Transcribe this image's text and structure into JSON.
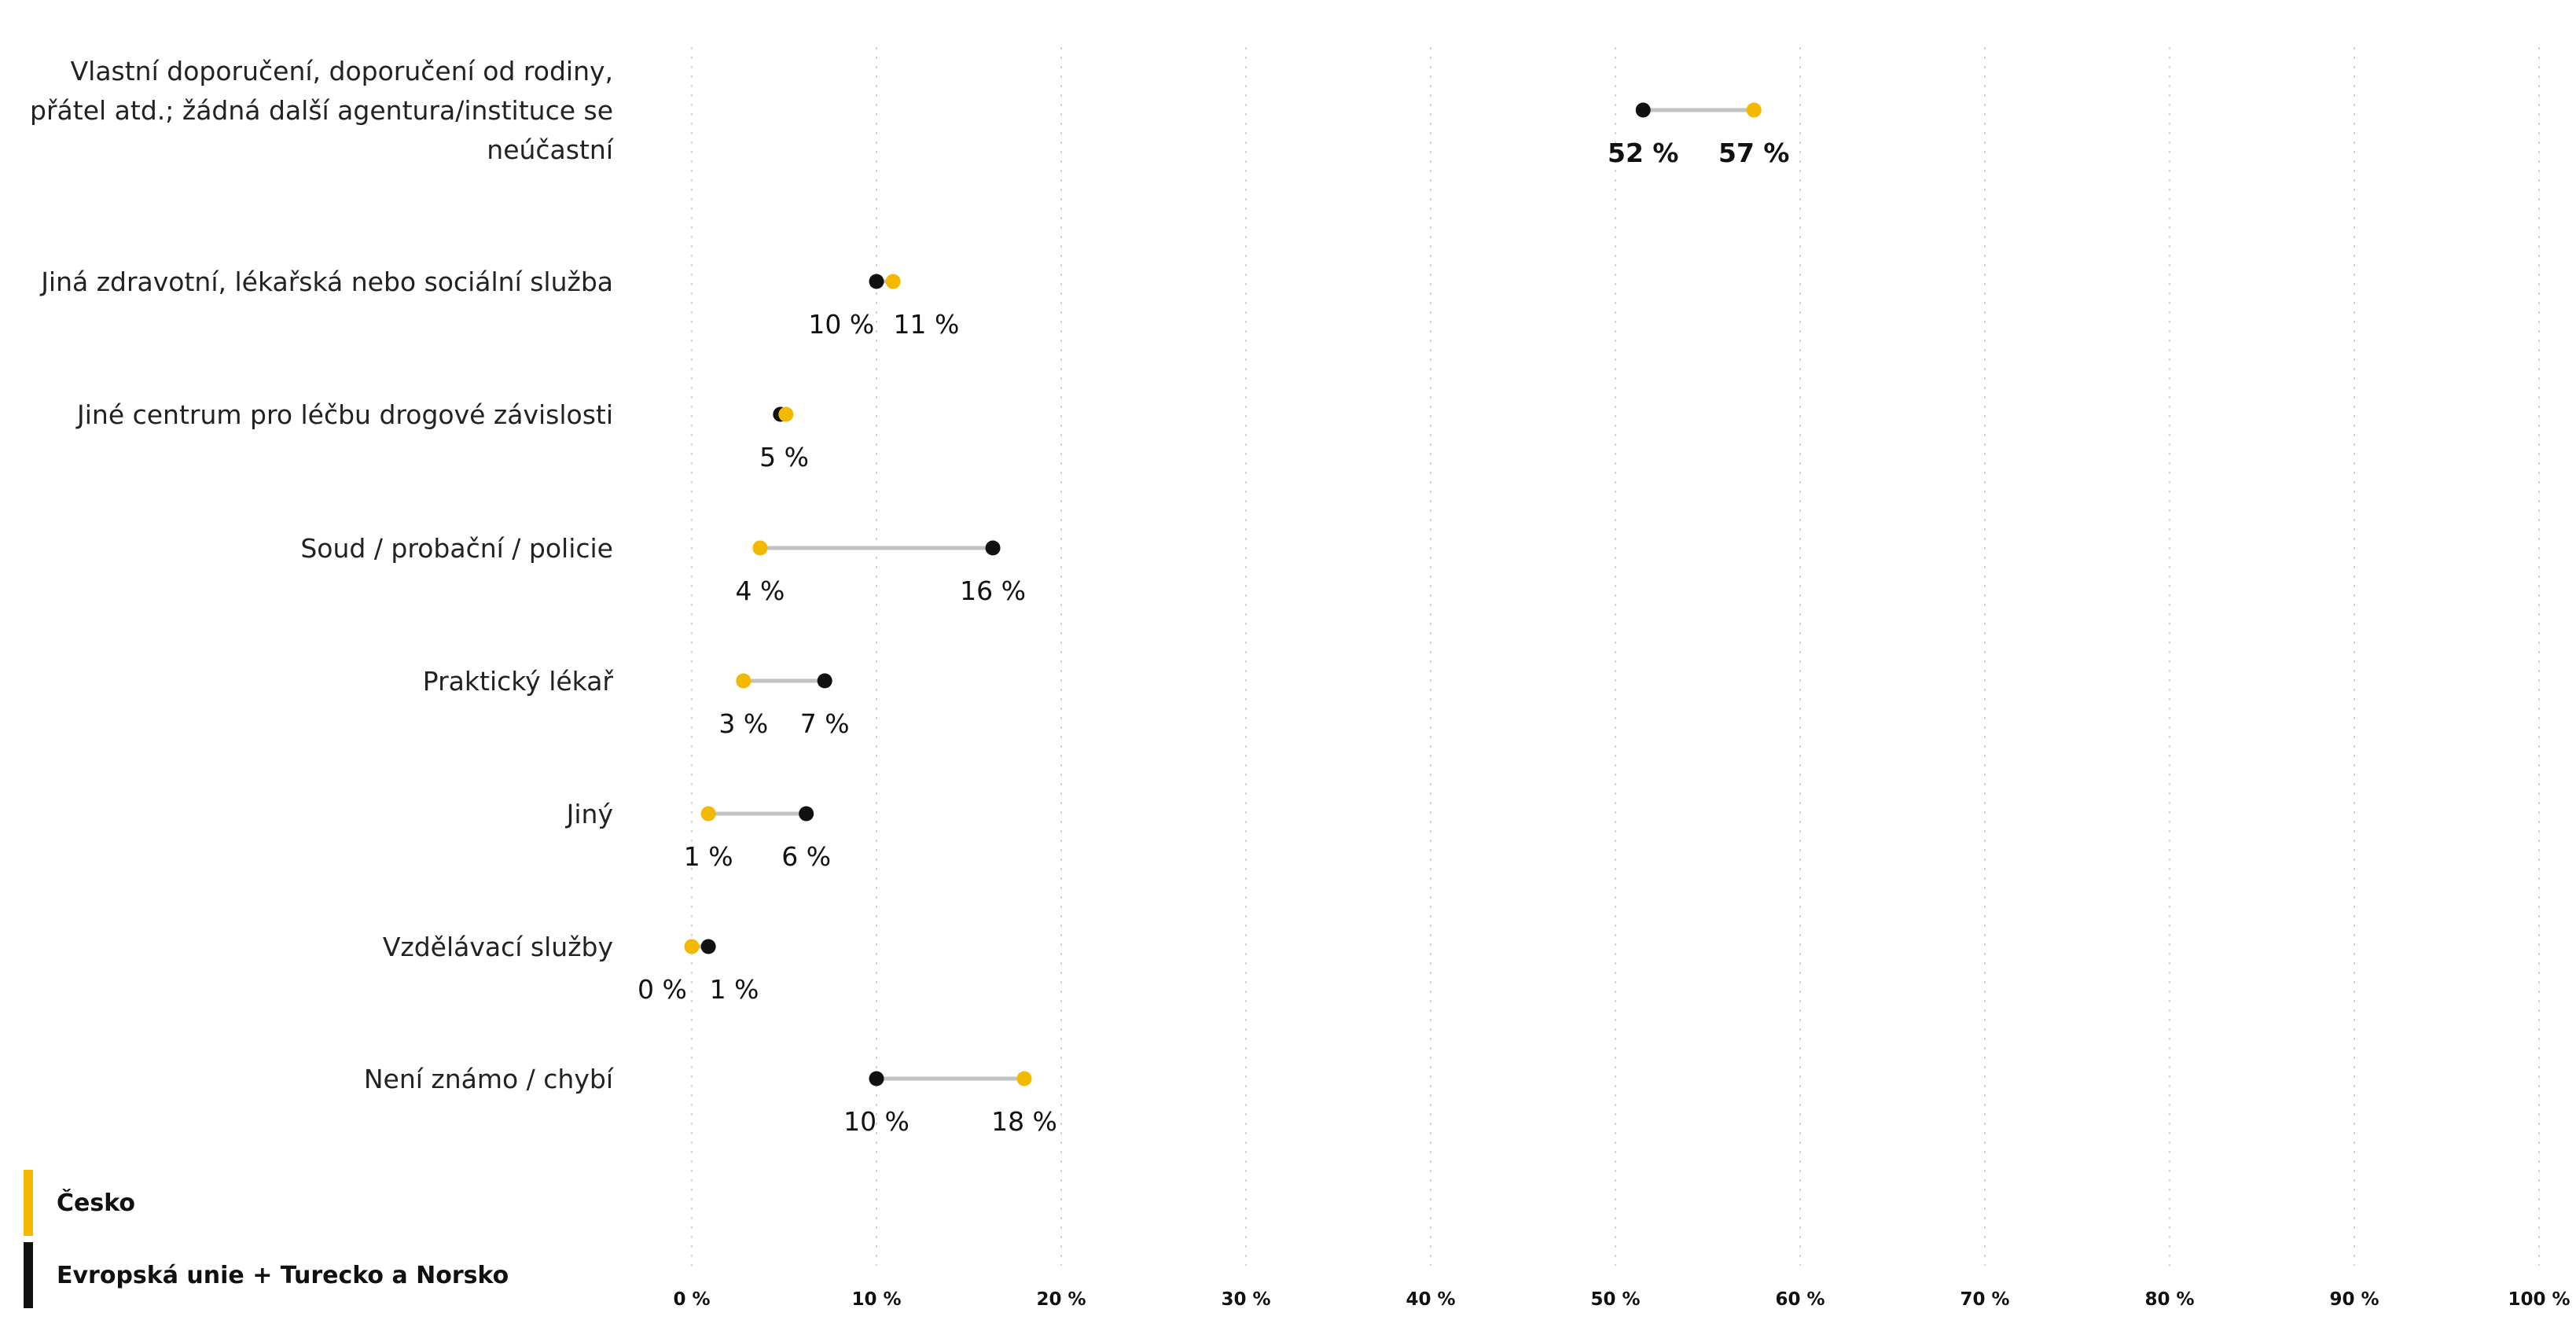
{
  "chart_data": {
    "type": "dumbbell",
    "title": "",
    "xlabel": "",
    "ylabel": "",
    "xlim": [
      0,
      100
    ],
    "x_ticks": [
      "0 %",
      "10 %",
      "20 %",
      "30 %",
      "40 %",
      "50 %",
      "60 %",
      "70 %",
      "80 %",
      "90 %",
      "100 %"
    ],
    "grid": true,
    "legend_position": "bottom-left",
    "colors": {
      "cesko": "#f5b800",
      "eu": "#111111",
      "connector": "#c2c2c2"
    },
    "series": [
      {
        "key": "cesko",
        "name": "Česko",
        "color": "#f5b800"
      },
      {
        "key": "eu",
        "name": "Evropská unie + Turecko a Norsko",
        "color": "#111111"
      }
    ],
    "categories": [
      {
        "label_lines": [
          "Vlastní doporučení, doporučení od rodiny,",
          "přátel atd.; žádná další agentura/instituce se",
          "neúčastní"
        ],
        "cesko": 57.5,
        "eu": 51.5,
        "labels": [
          {
            "text": "52 %",
            "x": 51.5,
            "bold": true
          },
          {
            "text": "57 %",
            "x": 57.5,
            "bold": true
          }
        ]
      },
      {
        "label_lines": [
          "Jiná zdravotní, lékařská nebo sociální služba"
        ],
        "cesko": 10.9,
        "eu": 10.0,
        "labels": [
          {
            "text": "10 %",
            "x": 8.1,
            "bold": false
          },
          {
            "text": "11 %",
            "x": 12.7,
            "bold": false
          }
        ]
      },
      {
        "label_lines": [
          "Jiné centrum pro léčbu drogové závislosti"
        ],
        "cesko": 5.1,
        "eu": 4.8,
        "labels": [
          {
            "text": "5 %",
            "x": 5.0,
            "bold": false
          }
        ]
      },
      {
        "label_lines": [
          "Soud / probační / policie"
        ],
        "cesko": 3.7,
        "eu": 16.3,
        "labels": [
          {
            "text": "4 %",
            "x": 3.7,
            "bold": false
          },
          {
            "text": "16 %",
            "x": 16.3,
            "bold": false
          }
        ]
      },
      {
        "label_lines": [
          "Praktický lékař"
        ],
        "cesko": 2.8,
        "eu": 7.2,
        "labels": [
          {
            "text": "3 %",
            "x": 2.8,
            "bold": false
          },
          {
            "text": "7 %",
            "x": 7.2,
            "bold": false
          }
        ]
      },
      {
        "label_lines": [
          "Jiný"
        ],
        "cesko": 0.9,
        "eu": 6.2,
        "labels": [
          {
            "text": "1 %",
            "x": 0.9,
            "bold": false
          },
          {
            "text": "6 %",
            "x": 6.2,
            "bold": false
          }
        ]
      },
      {
        "label_lines": [
          "Vzdělávací služby"
        ],
        "cesko": 0.0,
        "eu": 0.9,
        "labels": [
          {
            "text": "0 %",
            "x": -1.6,
            "bold": false
          },
          {
            "text": "1 %",
            "x": 2.3,
            "bold": false
          }
        ]
      },
      {
        "label_lines": [
          "Není známo / chybí"
        ],
        "cesko": 18.0,
        "eu": 10.0,
        "labels": [
          {
            "text": "10 %",
            "x": 10.0,
            "bold": false
          },
          {
            "text": "18 %",
            "x": 18.0,
            "bold": false
          }
        ]
      }
    ]
  },
  "legend": {
    "items": [
      {
        "label": "Česko",
        "color": "#f5b800"
      },
      {
        "label": "Evropská unie + Turecko a Norsko",
        "color": "#111111"
      }
    ]
  }
}
